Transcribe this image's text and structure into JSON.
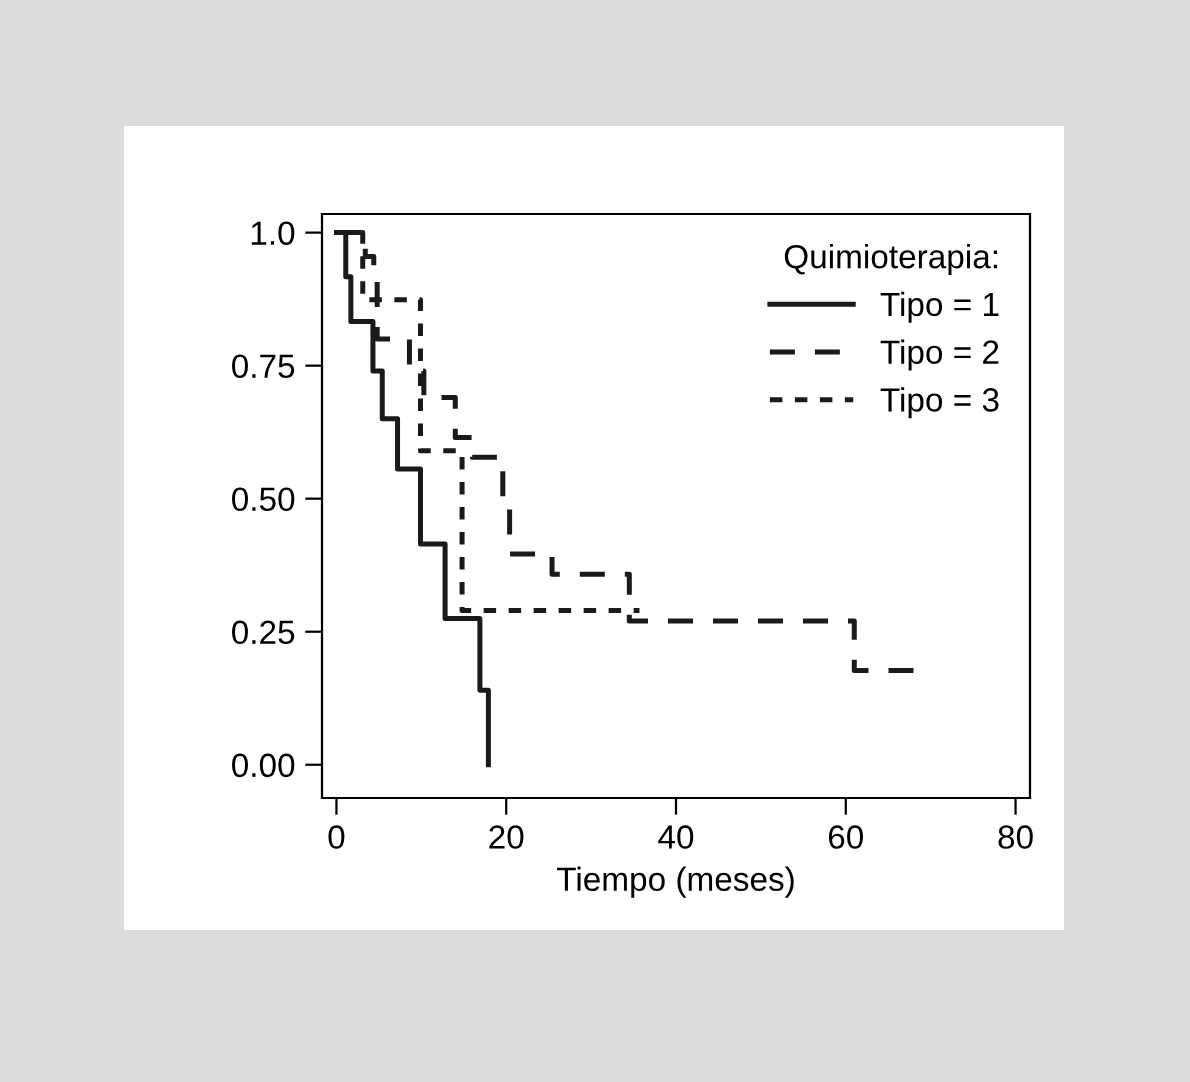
{
  "chart_data": {
    "type": "step",
    "xlabel": "Tiempo (meses)",
    "legend_title": "Quimioterapia:",
    "legend": "top right",
    "xlim": [
      -1.7,
      81.7
    ],
    "ylim": [
      -0.0625,
      1.035
    ],
    "xticks": [
      0,
      20,
      40,
      60,
      80
    ],
    "yticks": [
      {
        "value": 0,
        "label": "0.00"
      },
      {
        "value": 0.25,
        "label": "0.25"
      },
      {
        "value": 0.5,
        "label": "0.50"
      },
      {
        "value": 0.75,
        "label": "0.75"
      },
      {
        "value": 1.0,
        "label": "1.0"
      }
    ],
    "grid": false,
    "series": [
      {
        "name": "Tipo = 1",
        "color": "#1a1a1a",
        "line_style": "solid",
        "x": [
          0,
          1.1,
          1.7,
          4.3,
          5.4,
          7.2,
          9.9,
          12.8,
          16.9,
          17.9
        ],
        "values": [
          1.0,
          0.917,
          0.833,
          0.74,
          0.65,
          0.556,
          0.415,
          0.275,
          0.14,
          0.0
        ]
      },
      {
        "name": "Tipo = 2",
        "color": "#1a1a1a",
        "line_style": "dashed",
        "x": [
          0,
          3.4,
          4.4,
          4.8,
          8.6,
          10.3,
          14.0,
          16.0,
          19.6,
          20.4,
          25.4,
          34.5,
          61.0,
          68.8
        ],
        "values": [
          1.0,
          0.955,
          0.91,
          0.8,
          0.74,
          0.69,
          0.615,
          0.578,
          0.5,
          0.396,
          0.358,
          0.27,
          0.177,
          0.177
        ]
      },
      {
        "name": "Tipo = 3",
        "color": "#1a1a1a",
        "line_style": "dotted",
        "x": [
          0,
          3.1,
          9.9,
          14.8,
          35.7
        ],
        "values": [
          1.0,
          0.874,
          0.59,
          0.29,
          0.29
        ]
      }
    ]
  }
}
